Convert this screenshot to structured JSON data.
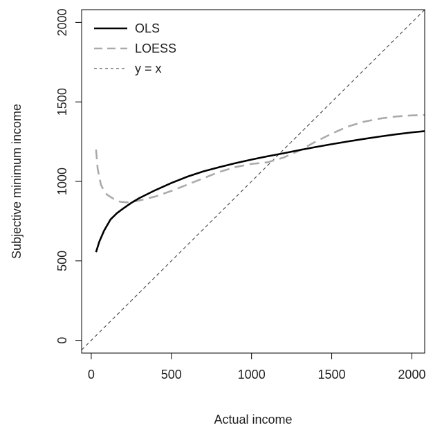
{
  "chart_data": {
    "type": "line",
    "title": "",
    "xlabel": "Actual income",
    "ylabel": "Subjective minimum income",
    "xlim": [
      -60,
      2080
    ],
    "ylim": [
      -80,
      2080
    ],
    "x_ticks": [
      0,
      500,
      1000,
      1500,
      2000
    ],
    "y_ticks": [
      0,
      500,
      1000,
      1500,
      2000
    ],
    "grid": false,
    "legend": {
      "position": "top-left",
      "entries": [
        {
          "name": "OLS",
          "color": "#000000",
          "style": "solid"
        },
        {
          "name": "LOESS",
          "color": "#aaaaaa",
          "style": "dashed"
        },
        {
          "name": "y = x",
          "color": "#333333",
          "style": "dotted"
        }
      ]
    },
    "series": [
      {
        "name": "OLS",
        "color": "#000000",
        "style": "solid",
        "x": [
          30,
          50,
          80,
          120,
          160,
          200,
          250,
          300,
          400,
          500,
          600,
          700,
          800,
          900,
          1000,
          1100,
          1200,
          1300,
          1400,
          1500,
          1600,
          1700,
          1800,
          1900,
          2000,
          2080
        ],
        "y": [
          555,
          620,
          690,
          760,
          800,
          830,
          865,
          895,
          945,
          990,
          1030,
          1063,
          1090,
          1115,
          1137,
          1158,
          1177,
          1197,
          1216,
          1234,
          1251,
          1267,
          1282,
          1296,
          1308,
          1316
        ]
      },
      {
        "name": "LOESS",
        "color": "#aaaaaa",
        "style": "dashed",
        "x": [
          30,
          40,
          60,
          80,
          100,
          140,
          180,
          220,
          260,
          300,
          400,
          500,
          600,
          700,
          800,
          900,
          1000,
          1100,
          1200,
          1300,
          1400,
          1500,
          1600,
          1700,
          1800,
          1900,
          2000,
          2080
        ],
        "y": [
          1200,
          1080,
          980,
          940,
          915,
          890,
          872,
          868,
          872,
          880,
          905,
          940,
          980,
          1020,
          1060,
          1090,
          1110,
          1120,
          1150,
          1195,
          1250,
          1300,
          1345,
          1375,
          1395,
          1408,
          1415,
          1418
        ]
      },
      {
        "name": "y = x",
        "color": "#333333",
        "style": "dotted",
        "x": [
          -60,
          2080
        ],
        "y": [
          -60,
          2080
        ]
      }
    ]
  }
}
